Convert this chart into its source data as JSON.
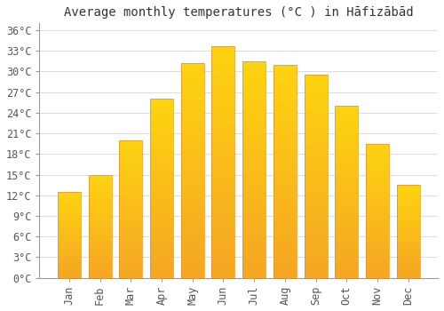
{
  "title": "Average monthly temperatures (°C ) in Hāfizābād",
  "months": [
    "Jan",
    "Feb",
    "Mar",
    "Apr",
    "May",
    "Jun",
    "Jul",
    "Aug",
    "Sep",
    "Oct",
    "Nov",
    "Dec"
  ],
  "temperatures": [
    12.5,
    15.0,
    20.0,
    26.0,
    31.2,
    33.7,
    31.5,
    31.0,
    29.5,
    25.0,
    19.5,
    13.5
  ],
  "bar_color_top": "#FFC93C",
  "bar_color_bottom": "#F5A623",
  "background_color": "#FFFFFF",
  "grid_color": "#DDDDDD",
  "ylim": [
    0,
    37
  ],
  "yticks": [
    0,
    3,
    6,
    9,
    12,
    15,
    18,
    21,
    24,
    27,
    30,
    33,
    36
  ],
  "title_fontsize": 10,
  "tick_fontsize": 8.5,
  "bar_width": 0.75,
  "axis_line_color": "#999999"
}
